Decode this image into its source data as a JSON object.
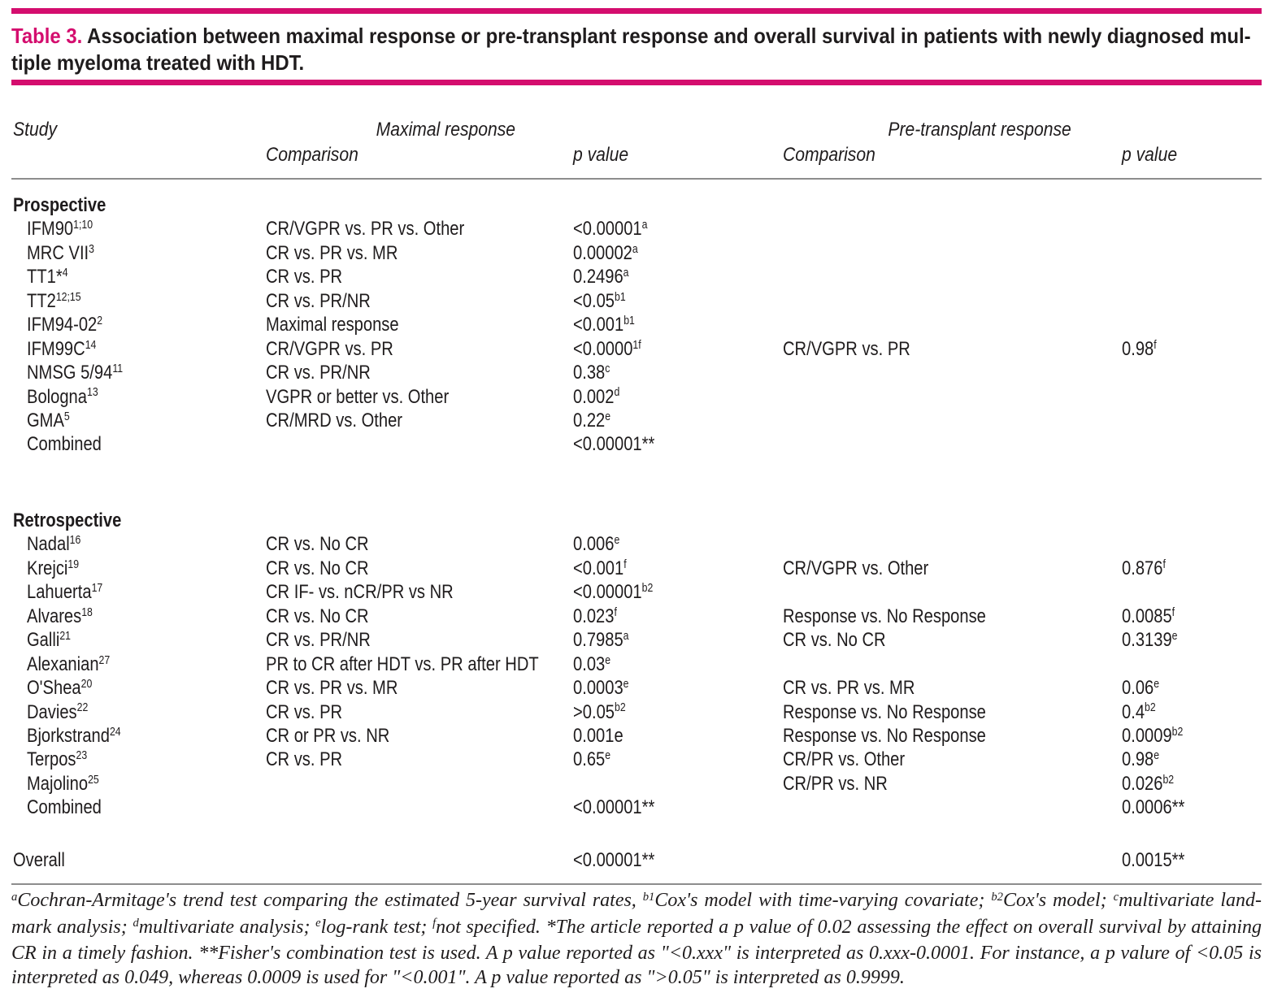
{
  "colors": {
    "accent": "#d40d6e",
    "ink": "#1f1c1d",
    "rule": "#8d8d8d"
  },
  "title": {
    "label": "Table 3.",
    "line1_rest": " Association between maximal response or pre-transplant response and overall survival in patients with newly diagnosed mul-",
    "line2": "tiple myeloma treated with HDT."
  },
  "table": {
    "header": {
      "study": "Study",
      "group1": "Maximal response",
      "group2": "Pre-transplant response",
      "max_comparison": "Comparison",
      "max_p": "p value",
      "pre_comparison": "Comparison",
      "pre_p": "p value"
    },
    "sections": [
      {
        "title": "Prospective",
        "rows": [
          {
            "study": [
              {
                "t": "IFM90"
              },
              {
                "s": "1;10"
              }
            ],
            "max_comp": "CR/VGPR vs. PR vs. Other",
            "max_p": [
              {
                "t": "<0.00001"
              },
              {
                "s": "a"
              }
            ]
          },
          {
            "study": [
              {
                "t": "MRC VII"
              },
              {
                "s": "3"
              }
            ],
            "max_comp": "CR vs. PR vs. MR",
            "max_p": [
              {
                "t": "0.00002"
              },
              {
                "s": "a"
              }
            ]
          },
          {
            "study": [
              {
                "t": "TT1*"
              },
              {
                "s": "4"
              }
            ],
            "max_comp": "CR vs. PR",
            "max_p": [
              {
                "t": "0.2496"
              },
              {
                "s": "a"
              }
            ]
          },
          {
            "study": [
              {
                "t": "TT2"
              },
              {
                "s": "12;15"
              }
            ],
            "max_comp": "CR vs. PR/NR",
            "max_p": [
              {
                "t": "<0.05"
              },
              {
                "s": "b1"
              }
            ]
          },
          {
            "study": [
              {
                "t": "IFM94-02"
              },
              {
                "s": "2"
              }
            ],
            "max_comp": "Maximal response",
            "max_p": [
              {
                "t": "<0.001"
              },
              {
                "s": "b1"
              }
            ]
          },
          {
            "study": [
              {
                "t": "IFM99C"
              },
              {
                "s": "14"
              }
            ],
            "max_comp": "CR/VGPR vs. PR",
            "max_p": [
              {
                "t": "<0.0000"
              },
              {
                "s": "1f"
              }
            ],
            "pre_comp": "CR/VGPR vs. PR",
            "pre_p": [
              {
                "t": "0.98"
              },
              {
                "s": "f"
              }
            ]
          },
          {
            "study": [
              {
                "t": "NMSG 5/94"
              },
              {
                "s": "11"
              }
            ],
            "max_comp": "CR vs. PR/NR",
            "max_p": [
              {
                "t": "0.38"
              },
              {
                "s": "c"
              }
            ]
          },
          {
            "study": [
              {
                "t": "Bologna"
              },
              {
                "s": "13"
              }
            ],
            "max_comp": "VGPR or better vs. Other",
            "max_p": [
              {
                "t": "0.002"
              },
              {
                "s": "d"
              }
            ]
          },
          {
            "study": [
              {
                "t": "GMA"
              },
              {
                "s": "5"
              }
            ],
            "max_comp": "CR/MRD vs. Other",
            "max_p": [
              {
                "t": "0.22"
              },
              {
                "s": "e"
              }
            ]
          },
          {
            "study": [
              {
                "t": "Combined"
              }
            ],
            "max_p": [
              {
                "t": "<0.00001**"
              }
            ]
          }
        ]
      },
      {
        "title": "Retrospective",
        "rows": [
          {
            "study": [
              {
                "t": "Nadal"
              },
              {
                "s": "16"
              }
            ],
            "max_comp": "CR vs. No CR",
            "max_p": [
              {
                "t": "0.006"
              },
              {
                "s": "e"
              }
            ]
          },
          {
            "study": [
              {
                "t": "Krejci"
              },
              {
                "s": "19"
              }
            ],
            "max_comp": "CR vs. No CR",
            "max_p": [
              {
                "t": "<0.001"
              },
              {
                "s": "f"
              }
            ],
            "pre_comp": "CR/VGPR vs. Other",
            "pre_p": [
              {
                "t": "0.876"
              },
              {
                "s": "f"
              }
            ]
          },
          {
            "study": [
              {
                "t": "Lahuerta"
              },
              {
                "s": "17"
              }
            ],
            "max_comp": "CR IF- vs. nCR/PR vs NR",
            "max_p": [
              {
                "t": "<0.00001"
              },
              {
                "s": "b2"
              }
            ]
          },
          {
            "study": [
              {
                "t": "Alvares"
              },
              {
                "s": "18"
              }
            ],
            "max_comp": "CR vs. No CR",
            "max_p": [
              {
                "t": "0.023"
              },
              {
                "s": "f"
              }
            ],
            "pre_comp": "Response vs. No Response",
            "pre_p": [
              {
                "t": "0.0085"
              },
              {
                "s": "f"
              }
            ]
          },
          {
            "study": [
              {
                "t": "Galli"
              },
              {
                "s": "21"
              }
            ],
            "max_comp": "CR vs. PR/NR",
            "max_p": [
              {
                "t": "0.7985"
              },
              {
                "s": "a"
              }
            ],
            "pre_comp": "CR vs. No CR",
            "pre_p": [
              {
                "t": "0.3139"
              },
              {
                "s": "e"
              }
            ]
          },
          {
            "study": [
              {
                "t": "Alexanian"
              },
              {
                "s": "27"
              }
            ],
            "max_comp": "PR to CR after HDT vs. PR after HDT",
            "max_p": [
              {
                "t": "0.03"
              },
              {
                "s": "e"
              }
            ]
          },
          {
            "study": [
              {
                "t": "O'Shea"
              },
              {
                "s": "20"
              }
            ],
            "max_comp": "CR vs. PR vs. MR",
            "max_p": [
              {
                "t": "0.0003"
              },
              {
                "s": "e"
              }
            ],
            "pre_comp": "CR vs. PR vs. MR",
            "pre_p": [
              {
                "t": "0.06"
              },
              {
                "s": "e"
              }
            ]
          },
          {
            "study": [
              {
                "t": "Davies"
              },
              {
                "s": "22"
              }
            ],
            "max_comp": "CR vs. PR",
            "max_p": [
              {
                "t": ">0.05"
              },
              {
                "s": "b2"
              }
            ],
            "pre_comp": "Response vs. No Response",
            "pre_p": [
              {
                "t": "0.4"
              },
              {
                "s": "b2"
              }
            ]
          },
          {
            "study": [
              {
                "t": "Bjorkstrand"
              },
              {
                "s": "24"
              }
            ],
            "max_comp": "CR or PR vs. NR",
            "max_p": [
              {
                "t": "0.001e"
              }
            ],
            "pre_comp": "Response vs. No Response",
            "pre_p": [
              {
                "t": "0.0009"
              },
              {
                "s": "b2"
              }
            ]
          },
          {
            "study": [
              {
                "t": "Terpos"
              },
              {
                "s": "23"
              }
            ],
            "max_comp": "CR vs. PR",
            "max_p": [
              {
                "t": "0.65"
              },
              {
                "s": "e"
              }
            ],
            "pre_comp": "CR/PR vs. Other",
            "pre_p": [
              {
                "t": "0.98"
              },
              {
                "s": "e"
              }
            ]
          },
          {
            "study": [
              {
                "t": "Majolino"
              },
              {
                "s": "25"
              }
            ],
            "pre_comp": "CR/PR vs. NR",
            "pre_p": [
              {
                "t": "0.026"
              },
              {
                "s": "b2"
              }
            ]
          },
          {
            "study": [
              {
                "t": "Combined"
              }
            ],
            "max_p": [
              {
                "t": "<0.00001**"
              }
            ],
            "pre_p": [
              {
                "t": "0.0006**"
              }
            ]
          }
        ]
      }
    ],
    "overall": {
      "label": "Overall",
      "max_p": [
        {
          "t": "<0.00001**"
        }
      ],
      "pre_p": [
        {
          "t": "0.0015**"
        }
      ]
    }
  },
  "footnote": {
    "segments": [
      {
        "s": "a"
      },
      {
        "t": "Cochran-Armitage's trend test comparing the estimated 5-year survival rates, "
      },
      {
        "s": "b1"
      },
      {
        "t": "Cox's model with time-varying covariate; "
      },
      {
        "s": "b2"
      },
      {
        "t": "Cox's model; "
      },
      {
        "s": "c"
      },
      {
        "t": "multivariate land-mark analysis; "
      },
      {
        "s": "d"
      },
      {
        "t": "multivariate analysis; "
      },
      {
        "s": "e"
      },
      {
        "t": "log-rank test; "
      },
      {
        "s": "f"
      },
      {
        "t": "not specified. *The article reported a p value of 0.02 assessing the effect on overall survival by attaining CR in a timely fashion. **Fisher's combination test is used. A p value reported as \"<0.xxx\" is interpreted as 0.xxx-0.0001. For instance, a p valure of <0.05 is interpreted as 0.049, whereas 0.0009 is used for \"<0.001\". A p value reported as \">0.05\" is interpreted as 0.9999."
      }
    ]
  }
}
